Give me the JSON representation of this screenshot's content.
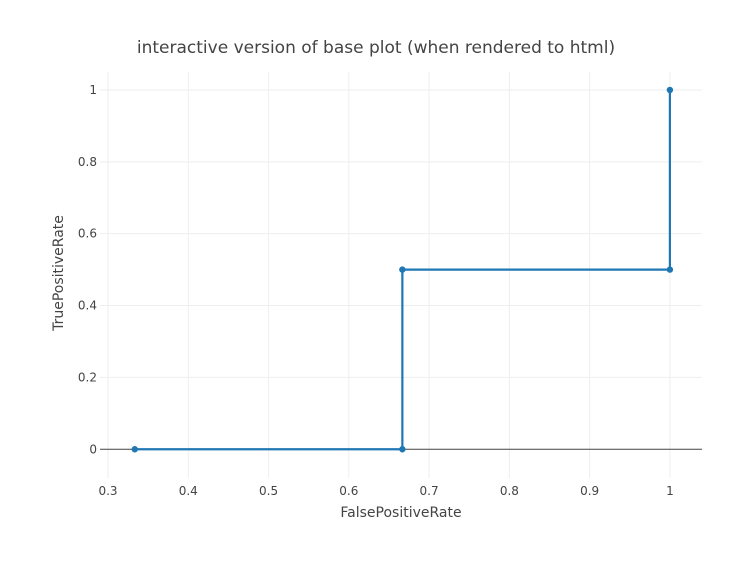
{
  "chart_data": {
    "type": "line",
    "title": "interactive version of base plot (when rendered to html)",
    "xlabel": "FalsePositiveRate",
    "ylabel": "TruePositiveRate",
    "xlim": [
      0.29,
      1.04
    ],
    "ylim": [
      -0.08,
      1.05
    ],
    "x_ticks": [
      0.3,
      0.4,
      0.5,
      0.6,
      0.7,
      0.8,
      0.9,
      1
    ],
    "x_tick_labels": [
      "0.3",
      "0.4",
      "0.5",
      "0.6",
      "0.7",
      "0.8",
      "0.9",
      "1"
    ],
    "y_ticks": [
      0,
      0.2,
      0.4,
      0.6,
      0.8,
      1
    ],
    "y_tick_labels": [
      "0",
      "0.2",
      "0.4",
      "0.6",
      "0.8",
      "1"
    ],
    "grid": true,
    "zero_line": true,
    "series": [
      {
        "line_shape": "step",
        "color": "#1f77b4",
        "points": [
          {
            "x": 0.3333,
            "y": 0
          },
          {
            "x": 0.6667,
            "y": 0
          },
          {
            "x": 0.6667,
            "y": 0.5
          },
          {
            "x": 1,
            "y": 0.5
          },
          {
            "x": 1,
            "y": 1
          }
        ]
      }
    ]
  }
}
